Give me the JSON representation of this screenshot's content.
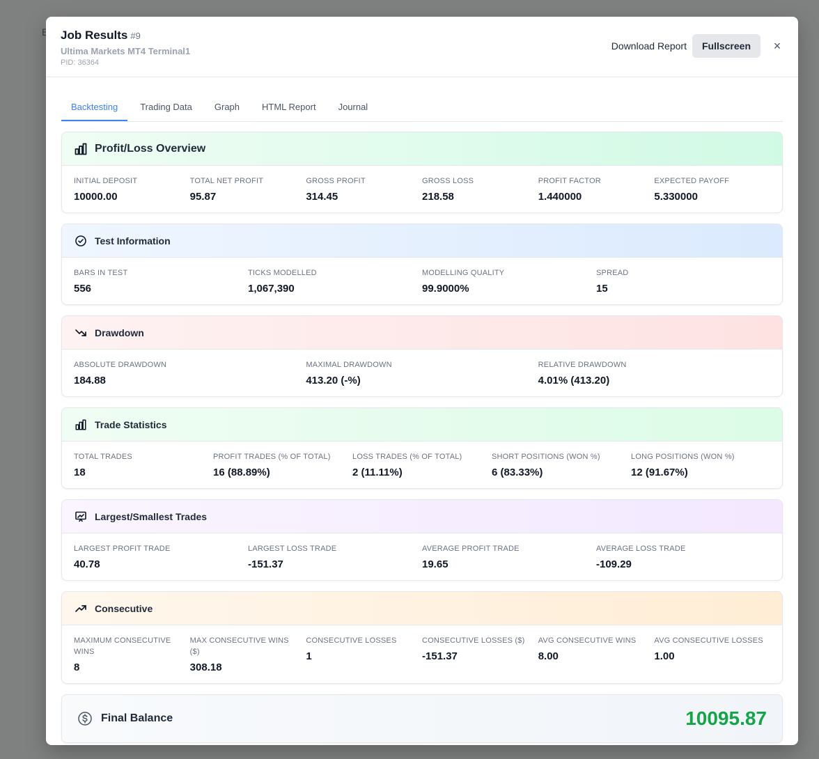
{
  "backdrop": {
    "text": "B"
  },
  "header": {
    "title": "Job Results",
    "job_number": "#9",
    "subtitle": "Ultima Markets MT4 Terminal1",
    "pid": "PID: 36364",
    "download_label": "Download Report",
    "fullscreen_label": "Fullscreen",
    "close_symbol": "×"
  },
  "tabs": [
    {
      "label": "Backtesting",
      "active": true
    },
    {
      "label": "Trading Data"
    },
    {
      "label": "Graph"
    },
    {
      "label": "HTML Report"
    },
    {
      "label": "Journal"
    }
  ],
  "sections": {
    "profit_loss": {
      "title": "Profit/Loss Overview",
      "icon": "bar-chart-icon",
      "stats": [
        {
          "label": "INITIAL DEPOSIT",
          "value": "10000.00"
        },
        {
          "label": "TOTAL NET PROFIT",
          "value": "95.87"
        },
        {
          "label": "GROSS PROFIT",
          "value": "314.45"
        },
        {
          "label": "GROSS LOSS",
          "value": "218.58"
        },
        {
          "label": "PROFIT FACTOR",
          "value": "1.440000"
        },
        {
          "label": "EXPECTED PAYOFF",
          "value": "5.330000"
        }
      ]
    },
    "test_info": {
      "title": "Test Information",
      "icon": "check-circle-icon",
      "stats": [
        {
          "label": "BARS IN TEST",
          "value": "556"
        },
        {
          "label": "TICKS MODELLED",
          "value": "1,067,390"
        },
        {
          "label": "MODELLING QUALITY",
          "value": "99.9000%"
        },
        {
          "label": "SPREAD",
          "value": "15"
        }
      ]
    },
    "drawdown": {
      "title": "Drawdown",
      "icon": "trending-down-icon",
      "stats": [
        {
          "label": "ABSOLUTE DRAWDOWN",
          "value": "184.88"
        },
        {
          "label": "MAXIMAL DRAWDOWN",
          "value": "413.20 (-%)"
        },
        {
          "label": "RELATIVE DRAWDOWN",
          "value": "4.01% (413.20)"
        }
      ]
    },
    "trade_stats": {
      "title": "Trade Statistics",
      "icon": "bar-chart-icon",
      "stats": [
        {
          "label": "TOTAL TRADES",
          "value": "18"
        },
        {
          "label": "PROFIT TRADES (% OF TOTAL)",
          "value": "16 (88.89%)"
        },
        {
          "label": "LOSS TRADES (% OF TOTAL)",
          "value": "2 (11.11%)"
        },
        {
          "label": "SHORT POSITIONS (WON %)",
          "value": "6 (83.33%)"
        },
        {
          "label": "LONG POSITIONS (WON %)",
          "value": "12 (91.67%)"
        }
      ]
    },
    "largest_smallest": {
      "title": "Largest/Smallest Trades",
      "icon": "presentation-chart-icon",
      "stats": [
        {
          "label": "LARGEST PROFIT TRADE",
          "value": "40.78"
        },
        {
          "label": "LARGEST LOSS TRADE",
          "value": "-151.37"
        },
        {
          "label": "AVERAGE PROFIT TRADE",
          "value": "19.65"
        },
        {
          "label": "AVERAGE LOSS TRADE",
          "value": "-109.29"
        }
      ]
    },
    "consecutive": {
      "title": "Consecutive",
      "icon": "trending-up-icon",
      "stats": [
        {
          "label": "MAXIMUM CONSECUTIVE WINS",
          "value": "8"
        },
        {
          "label": "MAX CONSECUTIVE WINS ($)",
          "value": "308.18"
        },
        {
          "label": "CONSECUTIVE LOSSES",
          "value": "1"
        },
        {
          "label": "CONSECUTIVE LOSSES ($)",
          "value": "-151.37"
        },
        {
          "label": "AVG CONSECUTIVE WINS",
          "value": "8.00"
        },
        {
          "label": "AVG CONSECUTIVE LOSSES",
          "value": "1.00"
        }
      ]
    }
  },
  "final_balance": {
    "label": "Final Balance",
    "icon": "dollar-circle-icon",
    "value": "10095.87",
    "value_color": "#16a34a"
  },
  "colors": {
    "accent": "#3b82f6",
    "backdrop": "#7f8180"
  }
}
